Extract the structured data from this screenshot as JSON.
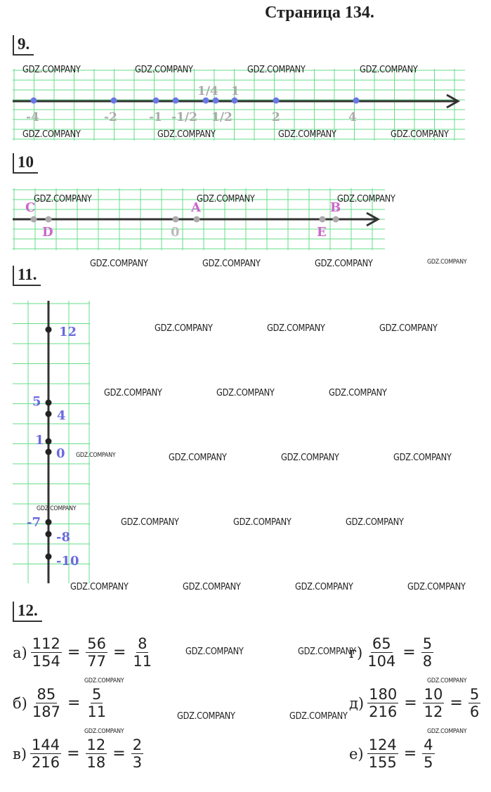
{
  "header": {
    "title": "Страница 134."
  },
  "watermark": "GDZ.COMPANY",
  "tasks": {
    "t9": {
      "number": "9.",
      "labels": [
        {
          "text": "-4"
        },
        {
          "text": "-2"
        },
        {
          "text": "-1"
        },
        {
          "text": "-1/2"
        },
        {
          "text": "1/4"
        },
        {
          "text": "1/2"
        },
        {
          "text": "1"
        },
        {
          "text": "2"
        },
        {
          "text": "4"
        }
      ]
    },
    "t10": {
      "number": "10",
      "labels": [
        {
          "text": "C"
        },
        {
          "text": "D"
        },
        {
          "text": "0"
        },
        {
          "text": "A"
        },
        {
          "text": "E"
        },
        {
          "text": "B"
        }
      ]
    },
    "t11": {
      "number": "11.",
      "labels": [
        {
          "text": "12"
        },
        {
          "text": "5"
        },
        {
          "text": "4"
        },
        {
          "text": "1"
        },
        {
          "text": "0"
        },
        {
          "text": "-7"
        },
        {
          "text": "-8"
        },
        {
          "text": "-10"
        }
      ]
    },
    "t12": {
      "number": "12.",
      "rows": [
        {
          "letter": "а)",
          "fracs": [
            [
              "112",
              "154"
            ],
            [
              "56",
              "77"
            ],
            [
              "8",
              "11"
            ]
          ]
        },
        {
          "letter": "б)",
          "fracs": [
            [
              "85",
              "187"
            ],
            [
              "5",
              "11"
            ]
          ]
        },
        {
          "letter": "в)",
          "fracs": [
            [
              "144",
              "216"
            ],
            [
              "12",
              "18"
            ],
            [
              "2",
              "3"
            ]
          ]
        },
        {
          "letter": "г)",
          "fracs": [
            [
              "65",
              "104"
            ],
            [
              "5",
              "8"
            ]
          ]
        },
        {
          "letter": "д)",
          "fracs": [
            [
              "180",
              "216"
            ],
            [
              "10",
              "12"
            ],
            [
              "5",
              "6"
            ]
          ]
        },
        {
          "letter": "е)",
          "fracs": [
            [
              "124",
              "155"
            ],
            [
              "4",
              "5"
            ]
          ]
        }
      ],
      "eq_sign": "="
    }
  },
  "colors": {
    "grid": "#66dd88",
    "axis": "#333333",
    "point_blue": "#6a78e6",
    "point_gray": "#aaaaaa",
    "label_pink": "#cc66cc",
    "label_blue": "#6a6adf"
  }
}
